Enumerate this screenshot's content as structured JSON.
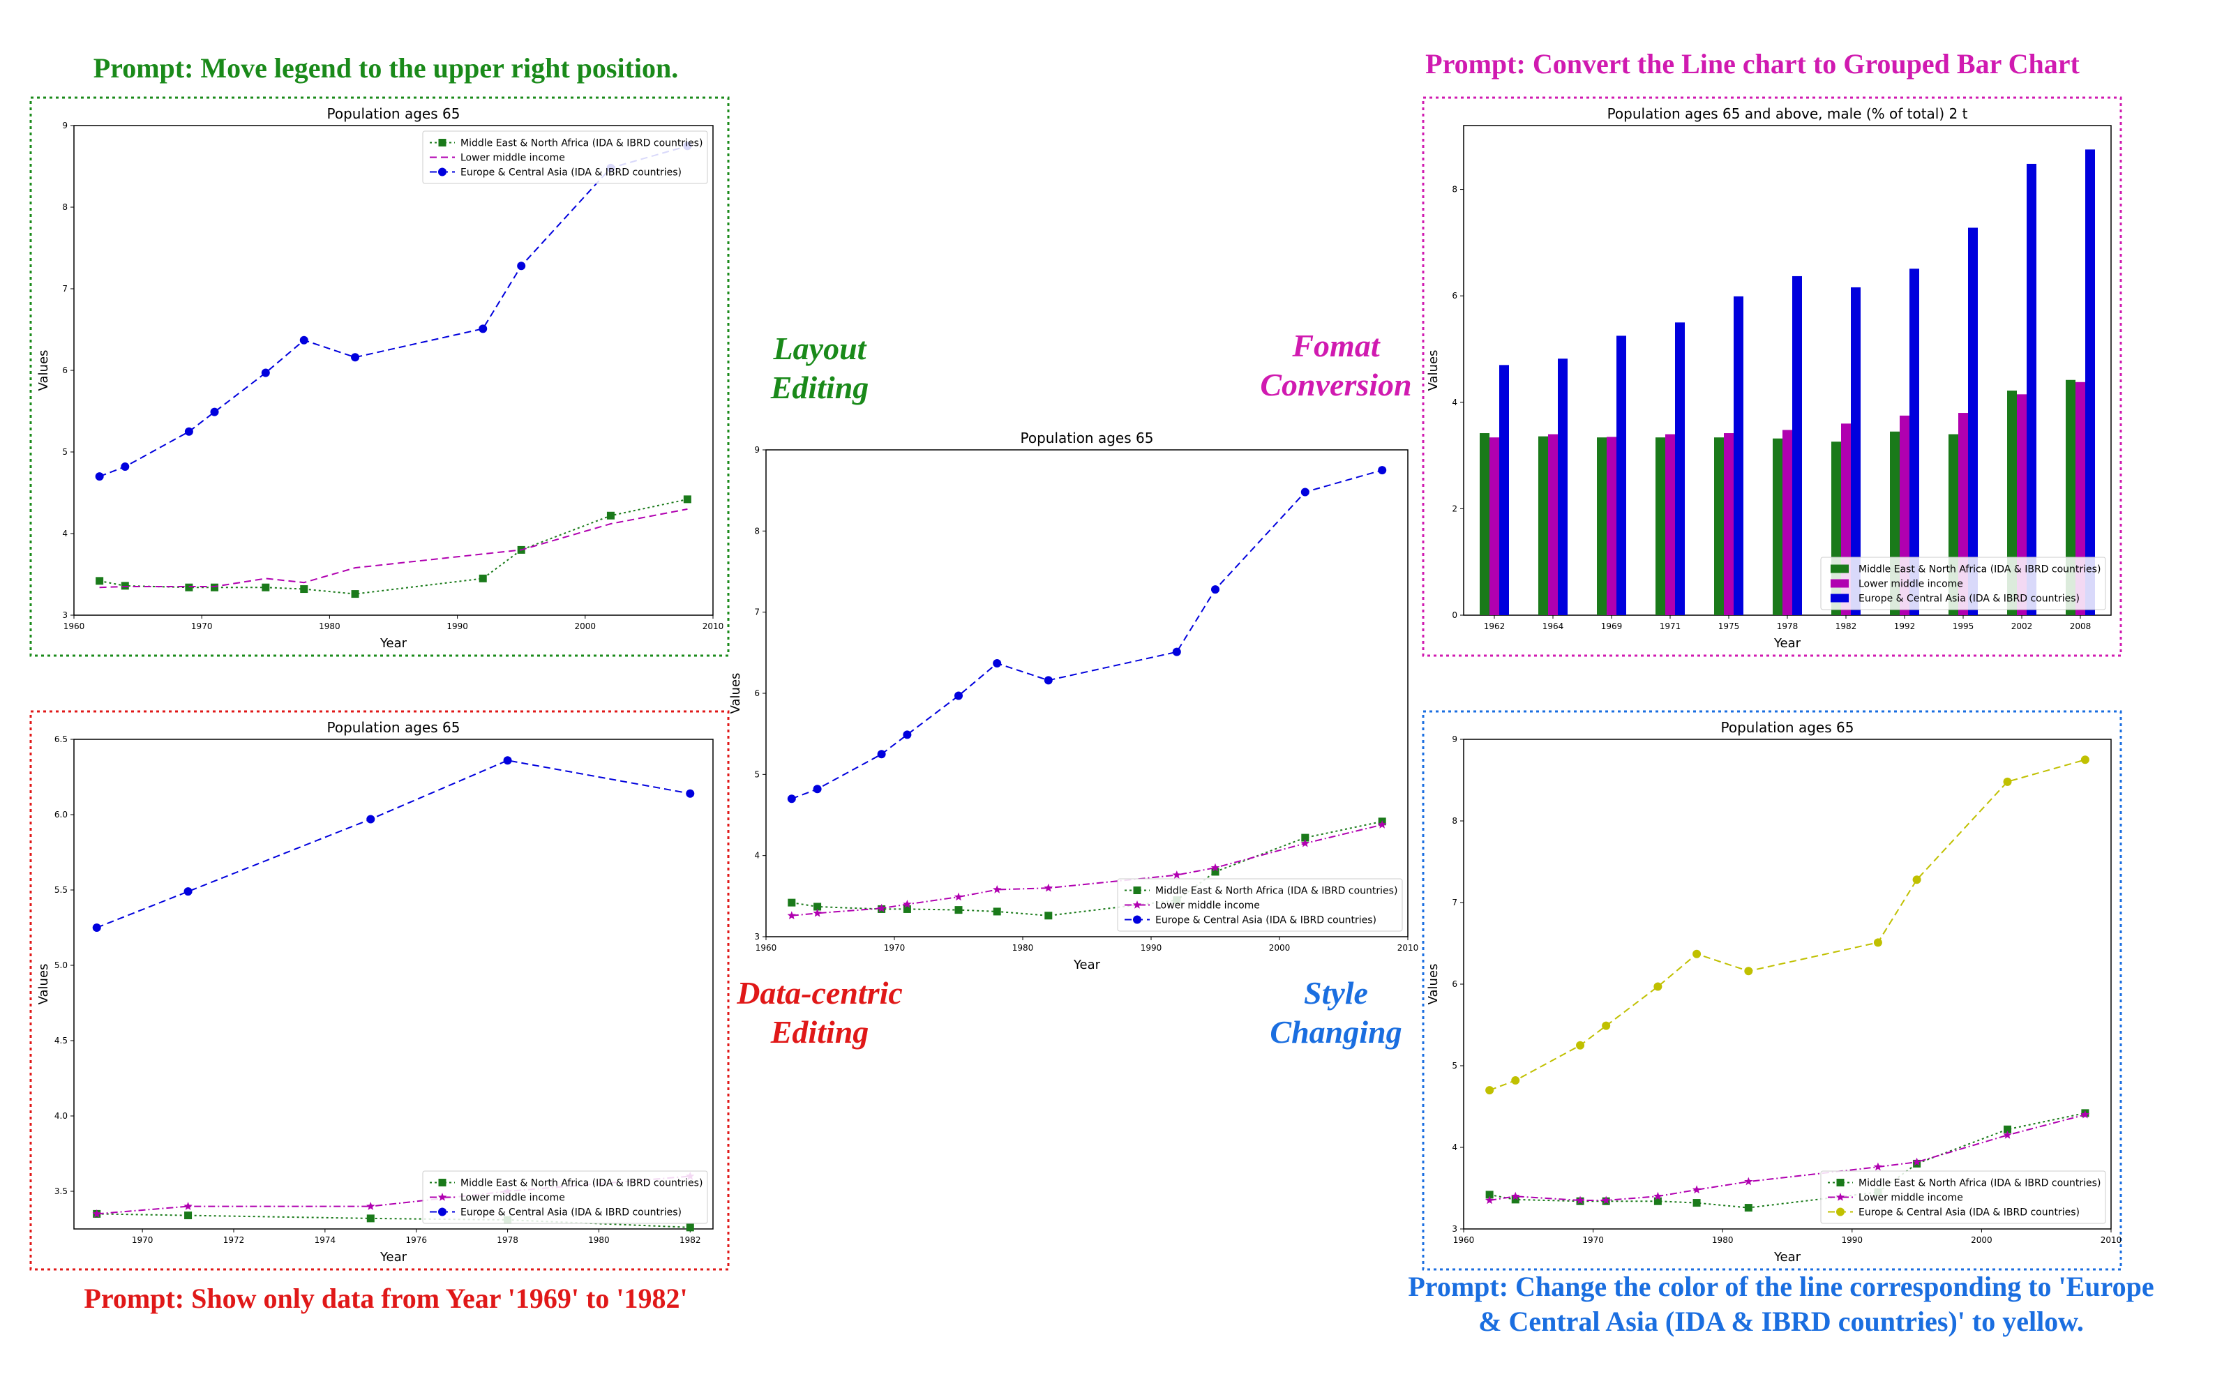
{
  "annotations": {
    "prompt_layout": "Prompt: Move legend to the upper right position.",
    "prompt_format": "Prompt: Convert the Line chart to Grouped Bar Chart",
    "prompt_data": "Prompt: Show only data from Year '1969' to '1982'",
    "prompt_style_line1": "Prompt: Change the color of the line corresponding to 'Europe",
    "prompt_style_line2": "& Central Asia (IDA & IBRD countries)' to yellow.",
    "cat_layout_1": "Layout",
    "cat_layout_2": "Editing",
    "cat_format_1": "Fomat",
    "cat_format_2": "Conversion",
    "cat_data_1": "Data-centric",
    "cat_data_2": "Editing",
    "cat_style_1": "Style",
    "cat_style_2": "Changing"
  },
  "colors": {
    "green": "#1a8a1a",
    "magenta": "#d01ab0",
    "red": "#e01818",
    "blue": "#1a6ee0",
    "series_green": "#1a7a1a",
    "series_magenta": "#b000b0",
    "series_blue": "#0000dd",
    "series_yellow": "#c0c000"
  },
  "chart_data": [
    {
      "id": "center",
      "type": "line",
      "title": "Population ages 65",
      "xlabel": "Year",
      "ylabel": "Values",
      "xlim": [
        1960,
        2010
      ],
      "ylim": [
        3,
        9
      ],
      "xticks": [
        1960,
        1970,
        1980,
        1990,
        2000,
        2010
      ],
      "yticks": [
        3,
        4,
        5,
        6,
        7,
        8,
        9
      ],
      "legend": "lower-right",
      "series": [
        {
          "name": "Middle East & North Africa (IDA & IBRD countries)",
          "marker": "square",
          "color": "#1a7a1a",
          "dash": "dotted",
          "x": [
            1962,
            1964,
            1969,
            1971,
            1975,
            1978,
            1982,
            1992,
            1995,
            2002,
            2008
          ],
          "y": [
            3.42,
            3.37,
            3.34,
            3.34,
            3.33,
            3.31,
            3.26,
            3.45,
            3.8,
            4.22,
            4.42
          ]
        },
        {
          "name": "Lower middle income",
          "marker": "star",
          "color": "#b000b0",
          "dash": "dashdot",
          "x": [
            1962,
            1964,
            1969,
            1971,
            1975,
            1978,
            1982,
            1992,
            1995,
            2002,
            2008
          ],
          "y": [
            3.26,
            3.29,
            3.35,
            3.4,
            3.49,
            3.58,
            3.6,
            3.76,
            3.85,
            4.15,
            4.38
          ]
        },
        {
          "name": "Europe & Central Asia (IDA & IBRD countries)",
          "marker": "circle",
          "color": "#0000dd",
          "dash": "dashed",
          "x": [
            1962,
            1964,
            1969,
            1971,
            1975,
            1978,
            1982,
            1992,
            1995,
            2002,
            2008
          ],
          "y": [
            4.7,
            4.82,
            5.25,
            5.49,
            5.97,
            6.37,
            6.16,
            6.51,
            7.28,
            8.48,
            8.75
          ]
        }
      ]
    },
    {
      "id": "layout",
      "type": "line",
      "title": "Population ages 65",
      "xlabel": "Year",
      "ylabel": "Values",
      "xlim": [
        1960,
        2010
      ],
      "ylim": [
        3,
        9
      ],
      "xticks": [
        1960,
        1970,
        1980,
        1990,
        2000,
        2010
      ],
      "yticks": [
        3,
        4,
        5,
        6,
        7,
        8,
        9
      ],
      "legend": "upper-right",
      "series": [
        {
          "name": "Middle East & North Africa (IDA & IBRD countries)",
          "marker": "square",
          "color": "#1a7a1a",
          "dash": "dotted",
          "x": [
            1962,
            1964,
            1969,
            1971,
            1975,
            1978,
            1982,
            1992,
            1995,
            2002,
            2008
          ],
          "y": [
            3.42,
            3.36,
            3.34,
            3.34,
            3.34,
            3.32,
            3.26,
            3.45,
            3.8,
            4.22,
            4.42
          ]
        },
        {
          "name": "Lower middle income",
          "marker": "none",
          "color": "#b000b0",
          "dash": "dashed",
          "x": [
            1962,
            1964,
            1969,
            1971,
            1975,
            1978,
            1982,
            1992,
            1995,
            2002,
            2008
          ],
          "y": [
            3.34,
            3.35,
            3.35,
            3.35,
            3.45,
            3.4,
            3.58,
            3.75,
            3.8,
            4.12,
            4.3
          ]
        },
        {
          "name": "Europe & Central Asia (IDA & IBRD countries)",
          "marker": "circle",
          "color": "#0000dd",
          "dash": "dashed",
          "x": [
            1962,
            1964,
            1969,
            1971,
            1975,
            1978,
            1982,
            1992,
            1995,
            2002,
            2008
          ],
          "y": [
            4.7,
            4.82,
            5.25,
            5.49,
            5.97,
            6.37,
            6.16,
            6.51,
            7.28,
            8.48,
            8.75
          ]
        }
      ]
    },
    {
      "id": "data",
      "type": "line",
      "title": "Population ages 65",
      "xlabel": "Year",
      "ylabel": "Values",
      "xlim": [
        1968.5,
        1982.5
      ],
      "ylim": [
        3.25,
        6.5
      ],
      "xticks": [
        1970,
        1972,
        1974,
        1976,
        1978,
        1980,
        1982
      ],
      "yticks": [
        3.5,
        4.0,
        4.5,
        5.0,
        5.5,
        6.0,
        6.5
      ],
      "tick_decimals": 1,
      "legend": "lower-right",
      "series": [
        {
          "name": "Middle East & North Africa (IDA & IBRD countries)",
          "marker": "square",
          "color": "#1a7a1a",
          "dash": "dotted",
          "x": [
            1969,
            1971,
            1975,
            1978,
            1982
          ],
          "y": [
            3.35,
            3.34,
            3.32,
            3.31,
            3.26
          ]
        },
        {
          "name": "Lower middle income",
          "marker": "star",
          "color": "#b000b0",
          "dash": "dashdot",
          "x": [
            1969,
            1971,
            1975,
            1978,
            1982
          ],
          "y": [
            3.35,
            3.4,
            3.4,
            3.5,
            3.6
          ]
        },
        {
          "name": "Europe & Central Asia (IDA & IBRD countries)",
          "marker": "circle",
          "color": "#0000dd",
          "dash": "dashed",
          "x": [
            1969,
            1971,
            1975,
            1978,
            1982
          ],
          "y": [
            5.25,
            5.49,
            5.97,
            6.36,
            6.14
          ]
        }
      ]
    },
    {
      "id": "format",
      "type": "bar",
      "title": "Population ages 65 and above, male (% of total) 2 t",
      "xlabel": "Year",
      "ylabel": "Values",
      "ylim": [
        0,
        9.2
      ],
      "yticks": [
        0,
        2,
        4,
        6,
        8
      ],
      "legend": "lower-right",
      "categories": [
        "1962",
        "1964",
        "1969",
        "1971",
        "1975",
        "1978",
        "1982",
        "1992",
        "1995",
        "2002",
        "2008"
      ],
      "series": [
        {
          "name": "Middle East & North Africa (IDA & IBRD countries)",
          "color": "#1a7a1a",
          "values": [
            3.42,
            3.36,
            3.34,
            3.34,
            3.34,
            3.32,
            3.26,
            3.45,
            3.4,
            4.22,
            4.42
          ]
        },
        {
          "name": "Lower middle income",
          "color": "#b000b0",
          "values": [
            3.34,
            3.4,
            3.35,
            3.4,
            3.42,
            3.48,
            3.6,
            3.75,
            3.8,
            4.15,
            4.38
          ]
        },
        {
          "name": "Europe & Central Asia (IDA & IBRD countries)",
          "color": "#0000dd",
          "values": [
            4.7,
            4.82,
            5.25,
            5.5,
            5.99,
            6.37,
            6.16,
            6.51,
            7.28,
            8.48,
            8.75
          ]
        }
      ]
    },
    {
      "id": "style",
      "type": "line",
      "title": "Population ages 65",
      "xlabel": "Year",
      "ylabel": "Values",
      "xlim": [
        1960,
        2010
      ],
      "ylim": [
        3,
        9
      ],
      "xticks": [
        1960,
        1970,
        1980,
        1990,
        2000,
        2010
      ],
      "yticks": [
        3,
        4,
        5,
        6,
        7,
        8,
        9
      ],
      "legend": "lower-right",
      "series": [
        {
          "name": "Middle East & North Africa (IDA & IBRD countries)",
          "marker": "square",
          "color": "#1a7a1a",
          "dash": "dotted",
          "x": [
            1962,
            1964,
            1969,
            1971,
            1975,
            1978,
            1982,
            1992,
            1995,
            2002,
            2008
          ],
          "y": [
            3.42,
            3.36,
            3.34,
            3.34,
            3.34,
            3.32,
            3.26,
            3.45,
            3.8,
            4.22,
            4.42
          ]
        },
        {
          "name": "Lower middle income",
          "marker": "star",
          "color": "#b000b0",
          "dash": "dashdot",
          "x": [
            1962,
            1964,
            1969,
            1971,
            1975,
            1978,
            1982,
            1992,
            1995,
            2002,
            2008
          ],
          "y": [
            3.35,
            3.4,
            3.35,
            3.35,
            3.4,
            3.48,
            3.58,
            3.76,
            3.82,
            4.15,
            4.4
          ]
        },
        {
          "name": "Europe & Central Asia (IDA & IBRD countries)",
          "marker": "circle",
          "color": "#c0c000",
          "dash": "dashed",
          "x": [
            1962,
            1964,
            1969,
            1971,
            1975,
            1978,
            1982,
            1992,
            1995,
            2002,
            2008
          ],
          "y": [
            4.7,
            4.82,
            5.25,
            5.49,
            5.97,
            6.37,
            6.16,
            6.51,
            7.28,
            8.48,
            8.75
          ]
        }
      ]
    }
  ]
}
